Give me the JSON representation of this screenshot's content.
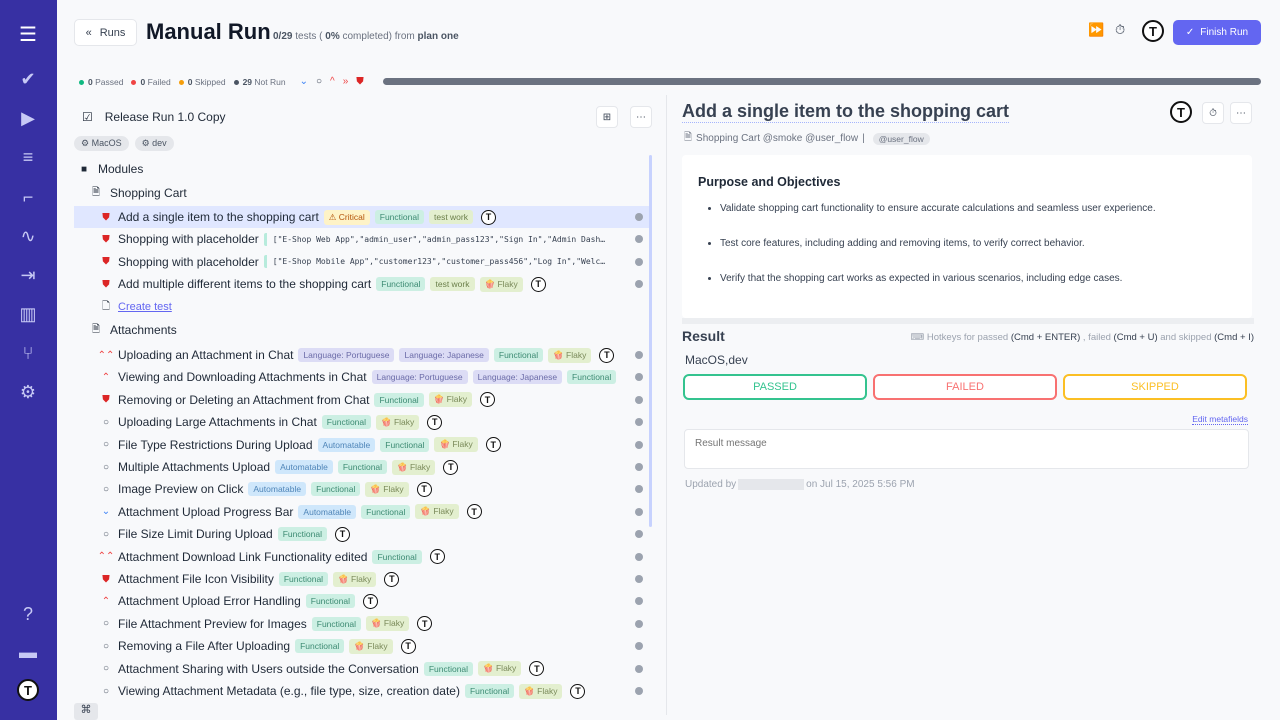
{
  "sidebar": {
    "accent": "#3730a3",
    "items": [
      {
        "icon": "menu-icon",
        "glyph": "☰"
      },
      {
        "icon": "check-icon",
        "glyph": "✔"
      },
      {
        "icon": "play-circle-icon",
        "glyph": "▶"
      },
      {
        "icon": "checklist-icon",
        "glyph": "≡"
      },
      {
        "icon": "stairs-icon",
        "glyph": "⌐"
      },
      {
        "icon": "activity-icon",
        "glyph": "∿"
      },
      {
        "icon": "import-icon",
        "glyph": "⇥"
      },
      {
        "icon": "report-chart-icon",
        "glyph": "▥"
      },
      {
        "icon": "git-branch-icon",
        "glyph": "⑂"
      },
      {
        "icon": "settings-gear-icon",
        "glyph": "⚙"
      }
    ],
    "bottom": [
      {
        "icon": "help-icon",
        "glyph": "?"
      },
      {
        "icon": "folders-icon",
        "glyph": "▬"
      }
    ]
  },
  "header": {
    "back_label": "Runs",
    "title": "Manual Run",
    "progress_count": "0/29",
    "progress_tests": "tests (",
    "progress_pct": "0%",
    "progress_from": "completed) from",
    "plan": "plan one",
    "finish_label": "Finish Run",
    "finish_color": "#6366f1"
  },
  "stats": [
    {
      "count": "0",
      "label": "Passed",
      "color": "#10b981"
    },
    {
      "count": "0",
      "label": "Failed",
      "color": "#ef4444"
    },
    {
      "count": "0",
      "label": "Skipped",
      "color": "#f59e0b"
    },
    {
      "count": "29",
      "label": "Not Run",
      "color": "#4b5563"
    }
  ],
  "progress_fraction": 0,
  "run": {
    "name": "Release Run 1.0 Copy",
    "envs": [
      "MacOS",
      "dev"
    ]
  },
  "tree": {
    "modules_label": "Modules",
    "create_test": "Create test",
    "suites": [
      {
        "name": "Shopping Cart",
        "tests": [
          {
            "title": "Add a single item to the shopping cart",
            "priority": "blocker",
            "selected": true,
            "tags": [
              {
                "t": "critical",
                "l": "⚠ Critical"
              },
              {
                "t": "functional",
                "l": "Functional"
              },
              {
                "t": "testwork",
                "l": "test work"
              }
            ],
            "avatar": true
          },
          {
            "title": "Shopping with placeholder",
            "priority": "blocker",
            "tags": [
              {
                "t": "param",
                "l": "[\"E-Shop Web App\",\"admin_user\",\"admin_pass123\",\"Sign In\",\"Admin Dash…"
              }
            ]
          },
          {
            "title": "Shopping with placeholder",
            "priority": "blocker",
            "tags": [
              {
                "t": "param",
                "l": "[\"E-Shop Mobile App\",\"customer123\",\"customer_pass456\",\"Log In\",\"Welc…"
              }
            ]
          },
          {
            "title": "Add multiple different items to the shopping cart",
            "priority": "blocker",
            "tags": [
              {
                "t": "functional",
                "l": "Functional"
              },
              {
                "t": "testwork",
                "l": "test work"
              },
              {
                "t": "flaky",
                "l": "🍿 Flaky"
              }
            ],
            "avatar": true
          }
        ]
      },
      {
        "name": "Attachments",
        "tests": [
          {
            "title": "Uploading an Attachment in Chat",
            "priority": "critical",
            "tags": [
              {
                "t": "lang",
                "l": "Language: Portuguese"
              },
              {
                "t": "lang",
                "l": "Language: Japanese"
              },
              {
                "t": "functional",
                "l": "Functional"
              },
              {
                "t": "flaky",
                "l": "🍿 Flaky"
              }
            ],
            "avatar": true
          },
          {
            "title": "Viewing and Downloading Attachments in Chat",
            "priority": "high",
            "tags": [
              {
                "t": "lang",
                "l": "Language: Portuguese"
              },
              {
                "t": "lang",
                "l": "Language: Japanese"
              },
              {
                "t": "functional",
                "l": "Functional"
              }
            ]
          },
          {
            "title": "Removing or Deleting an Attachment from Chat",
            "priority": "blocker",
            "tags": [
              {
                "t": "functional",
                "l": "Functional"
              },
              {
                "t": "flaky",
                "l": "🍿 Flaky"
              }
            ],
            "avatar": true
          },
          {
            "title": "Uploading Large Attachments in Chat",
            "priority": "normal",
            "tags": [
              {
                "t": "functional",
                "l": "Functional"
              },
              {
                "t": "flaky",
                "l": "🍿 Flaky"
              }
            ],
            "avatar": true
          },
          {
            "title": "File Type Restrictions During Upload",
            "priority": "normal",
            "tags": [
              {
                "t": "auto",
                "l": "Automatable"
              },
              {
                "t": "functional",
                "l": "Functional"
              },
              {
                "t": "flaky",
                "l": "🍿 Flaky"
              }
            ],
            "avatar": true
          },
          {
            "title": "Multiple Attachments Upload",
            "priority": "normal",
            "tags": [
              {
                "t": "auto",
                "l": "Automatable"
              },
              {
                "t": "functional",
                "l": "Functional"
              },
              {
                "t": "flaky",
                "l": "🍿 Flaky"
              }
            ],
            "avatar": true
          },
          {
            "title": "Image Preview on Click",
            "priority": "normal",
            "tags": [
              {
                "t": "auto",
                "l": "Automatable"
              },
              {
                "t": "functional",
                "l": "Functional"
              },
              {
                "t": "flaky",
                "l": "🍿 Flaky"
              }
            ],
            "avatar": true
          },
          {
            "title": "Attachment Upload Progress Bar",
            "priority": "low",
            "tags": [
              {
                "t": "auto",
                "l": "Automatable"
              },
              {
                "t": "functional",
                "l": "Functional"
              },
              {
                "t": "flaky",
                "l": "🍿 Flaky"
              }
            ],
            "avatar": true
          },
          {
            "title": "File Size Limit During Upload",
            "priority": "normal",
            "tags": [
              {
                "t": "functional",
                "l": "Functional"
              }
            ],
            "avatar": true
          },
          {
            "title": "Attachment Download Link Functionality edited",
            "priority": "critical",
            "tags": [
              {
                "t": "functional",
                "l": "Functional"
              }
            ],
            "avatar": true
          },
          {
            "title": "Attachment File Icon Visibility",
            "priority": "blocker",
            "tags": [
              {
                "t": "functional",
                "l": "Functional"
              },
              {
                "t": "flaky",
                "l": "🍿 Flaky"
              }
            ],
            "avatar": true
          },
          {
            "title": "Attachment Upload Error Handling",
            "priority": "high",
            "tags": [
              {
                "t": "functional",
                "l": "Functional"
              }
            ],
            "avatar": true
          },
          {
            "title": "File Attachment Preview for Images",
            "priority": "normal",
            "tags": [
              {
                "t": "functional",
                "l": "Functional"
              },
              {
                "t": "flaky",
                "l": "🍿 Flaky"
              }
            ],
            "avatar": true
          },
          {
            "title": "Removing a File After Uploading",
            "priority": "normal",
            "tags": [
              {
                "t": "functional",
                "l": "Functional"
              },
              {
                "t": "flaky",
                "l": "🍿 Flaky"
              }
            ],
            "avatar": true
          },
          {
            "title": "Attachment Sharing with Users outside the Conversation",
            "priority": "normal",
            "tags": [
              {
                "t": "functional",
                "l": "Functional"
              },
              {
                "t": "flaky",
                "l": "🍿 Flaky"
              }
            ],
            "avatar": true
          },
          {
            "title": "Viewing Attachment Metadata (e.g., file type, size, creation date)",
            "priority": "normal",
            "tags": [
              {
                "t": "functional",
                "l": "Functional"
              },
              {
                "t": "flaky",
                "l": "🍿 Flaky"
              }
            ],
            "avatar": true
          }
        ]
      }
    ]
  },
  "detail": {
    "title": "Add a single item to the shopping cart",
    "suite_line": "Shopping Cart @smoke @user_flow",
    "tag": "@user_flow",
    "section": "Purpose and Objectives",
    "bullets": [
      "Validate shopping cart functionality to ensure accurate calculations and seamless user experience.",
      "Test core features, including adding and removing items, to verify correct behavior.",
      "Verify that the shopping cart works as expected in various scenarios, including edge cases."
    ]
  },
  "result": {
    "heading": "Result",
    "hot_passed": "Hotkeys for passed",
    "key_passed": "(Cmd + ENTER)",
    "hot_failed": ", failed",
    "key_failed": "(Cmd + U)",
    "hot_skipped": "and skipped",
    "key_skipped": "(Cmd + I)",
    "env": "MacOS,dev",
    "passed": "PASSED",
    "failed": "FAILED",
    "skipped": "SKIPPED",
    "passed_color": "#34c38f",
    "failed_color": "#f87171",
    "skipped_color": "#fbbf24",
    "edit_meta": "Edit metafields",
    "message_placeholder": "Result message",
    "updated_by": "Updated by",
    "updated_on": "on Jul 15, 2025 5:56 PM"
  },
  "avatar_letter": "T"
}
